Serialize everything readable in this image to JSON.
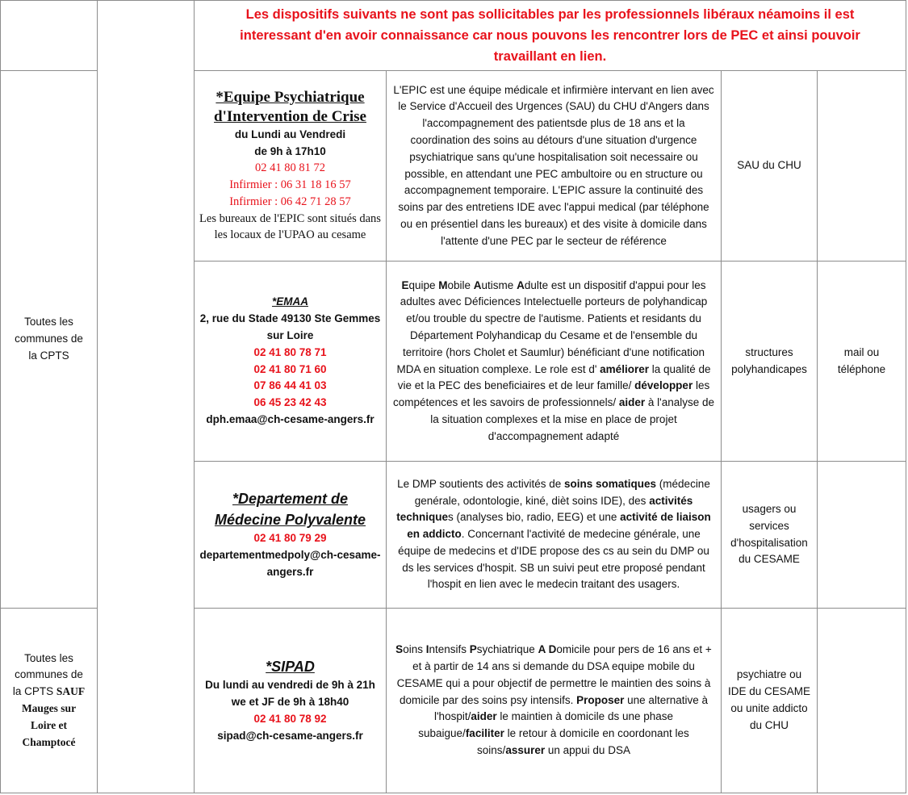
{
  "banner": "Les dispositifs suivants ne sont pas sollicitables par les professionnels libéraux néamoins il est interessant d'en avoir connaissance car nous pouvons les rencontrer lors de PEC et ainsi pouvoir travaillant en lien.",
  "zones": [
    {
      "runs": [
        {
          "text": "Toutes les communes de la CPTS"
        }
      ]
    },
    {
      "runs": [
        {
          "text": "Toutes les communes de la CPTS "
        },
        {
          "text": "SAUF Mauges sur Loire et Champtocé",
          "bold": true
        }
      ]
    }
  ],
  "rows": [
    {
      "name": [
        {
          "text": "*Equipe Psychiatrique d'Intervention de Crise",
          "style": "title-serif"
        },
        {
          "text": "du Lundi au Vendredi",
          "style": "bold"
        },
        {
          "text": "de 9h à 17h10",
          "style": "bold"
        },
        {
          "text": "02 41 80 81 72",
          "style": "red-serif"
        },
        {
          "text": "Infirmier : 06 31 18 16 57",
          "style": "red-serif"
        },
        {
          "text": "Infirmier : 06 42 71 28 57",
          "style": "red-serif"
        },
        {
          "text": "Les bureaux de l'EPIC sont situés dans les locaux de l'UPAO au cesame",
          "style": "serif"
        }
      ],
      "description": [
        {
          "text": "L'EPIC est une équipe médicale et infirmière intervant en lien avec le Service d'Accueil des Urgences (SAU) du CHU d'Angers dans l'accompagnement des patientsde plus de 18 ans et la coordination des soins au détours d'une situation d'urgence psychiatrique sans qu'une hospitalisation soit necessaire ou possible, en attendant une PEC ambultoire ou en structure ou accompagnement temporaire. L'EPIC assure la continuité des soins par des entretiens IDE avec l'appui medical (par téléphone ou en présentiel dans les bureaux) et des visite à domicile dans l'attente d'une PEC par le secteur de référence"
        }
      ],
      "orientation": "SAU du CHU"
    },
    {
      "name": [
        {
          "text": "*EMAA",
          "style": "title-small"
        },
        {
          "text": "2, rue du Stade 49130 Ste Gemmes sur Loire",
          "style": "bold"
        },
        {
          "text": "02 41 80 78 71",
          "style": "red-bold"
        },
        {
          "text": "02 41 80 71 60",
          "style": "red-bold"
        },
        {
          "text": "07 86 44 41 03",
          "style": "red-bold"
        },
        {
          "text": "06 45 23 42 43",
          "style": "red-bold"
        },
        {
          "text": "dph.emaa@ch-cesame-angers.fr",
          "style": "bold"
        }
      ],
      "description": [
        {
          "text": "E",
          "bold": true
        },
        {
          "text": "quipe "
        },
        {
          "text": "M",
          "bold": true
        },
        {
          "text": "obile "
        },
        {
          "text": "A",
          "bold": true
        },
        {
          "text": "utisme "
        },
        {
          "text": "A",
          "bold": true
        },
        {
          "text": "dulte est un dispositif d'appui pour les adultes avec Déficiences Intelectuelle porteurs de polyhandicap et/ou trouble du spectre de l'autisme. Patients et residants du Département Polyhandicap du Cesame et de l'ensemble du territoire (hors Cholet et Saumlur) bénéficiant d'une notification MDA en situation complexe. Le role est d' "
        },
        {
          "text": "améliorer",
          "bold": true
        },
        {
          "text": " la qualité de vie et la PEC des beneficiaires et de leur famille/ "
        },
        {
          "text": "développer",
          "bold": true
        },
        {
          "text": " les compétences et les savoirs de professionnels/ "
        },
        {
          "text": "aider",
          "bold": true
        },
        {
          "text": " à l'analyse de la situation complexes et la mise en place de projet d'accompagnement adapté"
        }
      ],
      "orientation": "structures polyhandicapes",
      "contact": "mail ou téléphone"
    },
    {
      "name": [
        {
          "text": "*Departement de Médecine Polyvalente",
          "style": "title-italic"
        },
        {
          "text": "02 41 80 79 29",
          "style": "red-bold"
        },
        {
          "text": "departementmedpoly@ch-cesame-angers.fr",
          "style": "bold"
        }
      ],
      "description": [
        {
          "text": "Le DMP soutients des activités de "
        },
        {
          "text": "soins somatiques",
          "bold": true
        },
        {
          "text": " (médecine genérale, odontologie, kiné, dièt soins IDE), des "
        },
        {
          "text": "activités technique",
          "bold": true
        },
        {
          "text": "s (analyses bio, radio, EEG) et une "
        },
        {
          "text": "activité de liaison en addicto",
          "bold": true
        },
        {
          "text": ". Concernant l'activité de medecine générale, une équipe de medecins et d'IDE propose des cs au sein du DMP ou ds les services d'hospit. SB un suivi peut etre proposé pendant l'hospit en lien avec le medecin traitant des usagers."
        }
      ],
      "orientation": "usagers ou services d'hospitalisation du CESAME"
    },
    {
      "name": [
        {
          "text": "*SIPAD",
          "style": "title-italic"
        },
        {
          "text": "Du lundi au vendredi de 9h à 21h we et JF de 9h à 18h40",
          "style": "bold"
        },
        {
          "text": "02 41 80 78 92",
          "style": "red-bold"
        },
        {
          "text": "sipad@ch-cesame-angers.fr",
          "style": "bold"
        }
      ],
      "description": [
        {
          "text": "S",
          "bold": true
        },
        {
          "text": "oins "
        },
        {
          "text": "I",
          "bold": true
        },
        {
          "text": "ntensifs "
        },
        {
          "text": "P",
          "bold": true
        },
        {
          "text": "sychiatrique "
        },
        {
          "text": "A D",
          "bold": true
        },
        {
          "text": "omicile pour pers de 16 ans et + et à partir de 14 ans si demande du DSA     equipe mobile du CESAME qui a pour objectif de permettre le maintien des soins à domicile par des soins psy intensifs. "
        },
        {
          "text": "Proposer",
          "bold": true
        },
        {
          "text": " une alternative à l'hospit/"
        },
        {
          "text": "aider",
          "bold": true
        },
        {
          "text": " le maintien à domicile ds une phase subaigue/"
        },
        {
          "text": "faciliter",
          "bold": true
        },
        {
          "text": " le retour à domicile en coordonant les soins/"
        },
        {
          "text": "assurer",
          "bold": true
        },
        {
          "text": " un appui du DSA"
        }
      ],
      "orientation": "psychiatre ou IDE du CESAME ou unite addicto du CHU"
    }
  ]
}
